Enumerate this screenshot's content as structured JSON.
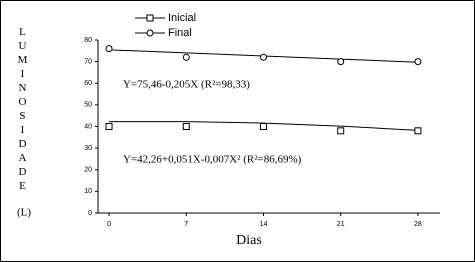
{
  "chart_data": {
    "type": "scatter",
    "y_label": "LUMINOSIDADE",
    "y_unit_label": "(L)",
    "x_label": "Dias",
    "x": [
      0,
      7,
      14,
      21,
      28
    ],
    "series": [
      {
        "name": "Inicial",
        "marker": "square",
        "color": "#000000",
        "values": [
          40,
          40,
          40,
          38,
          38
        ],
        "fit_values": [
          42.26,
          42.28,
          41.57,
          40.2,
          38.2
        ]
      },
      {
        "name": "Final",
        "marker": "circle",
        "color": "#000000",
        "values": [
          76,
          72,
          72,
          70,
          70
        ],
        "fit_values": [
          75.46,
          74.03,
          72.59,
          71.16,
          69.72
        ]
      }
    ],
    "annotations": [
      "Y=75,46-0,205X  (R²=98,33)",
      "Y=42,26+0,051X-0,007X²  (R²=86,69%)"
    ],
    "xlim": [
      -1,
      30
    ],
    "xticks": [
      0,
      7,
      14,
      21,
      28
    ],
    "ylim": [
      0,
      80
    ],
    "yticks": [
      0,
      10,
      20,
      30,
      40,
      50,
      60,
      70,
      80
    ]
  }
}
